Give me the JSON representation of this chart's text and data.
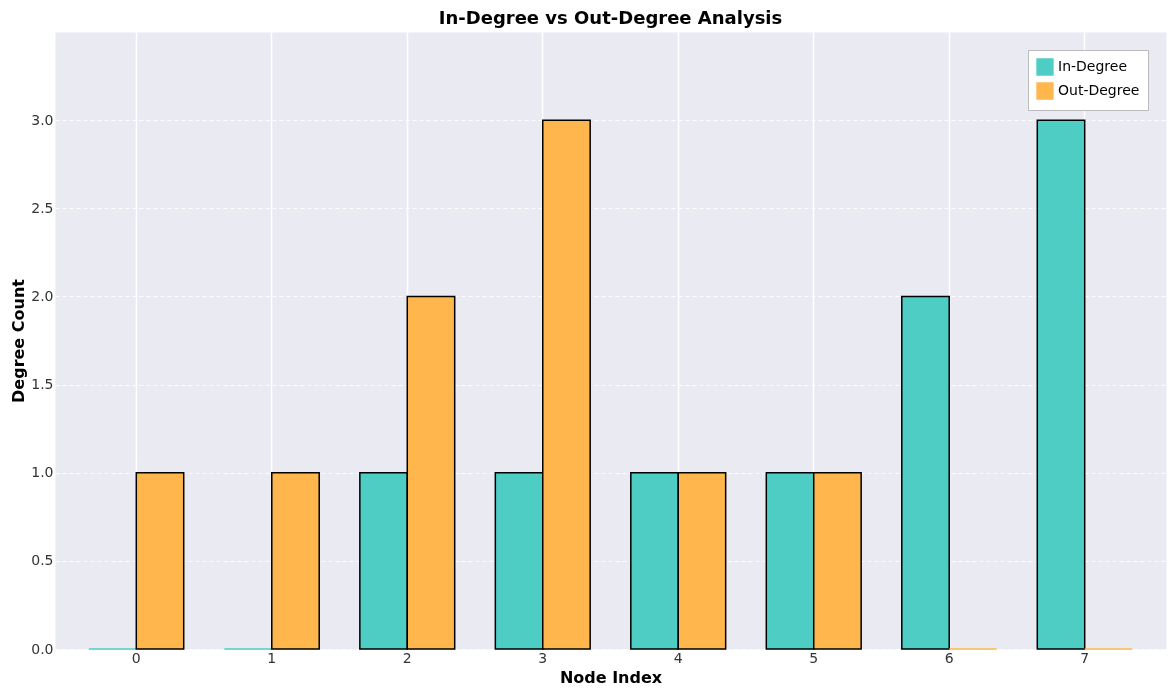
{
  "chart_data": {
    "type": "bar",
    "title": "In-Degree vs Out-Degree Analysis",
    "xlabel": "Node Index",
    "ylabel": "Degree Count",
    "categories": [
      "0",
      "1",
      "2",
      "3",
      "4",
      "5",
      "6",
      "7"
    ],
    "series": [
      {
        "name": "In-Degree",
        "color": "#4ecdc4",
        "values": [
          0,
          0,
          1,
          1,
          1,
          1,
          2,
          3
        ]
      },
      {
        "name": "Out-Degree",
        "color": "#ffb74d",
        "values": [
          1,
          1,
          2,
          3,
          1,
          1,
          0,
          0
        ]
      }
    ],
    "ylim": [
      0,
      3.5
    ],
    "yticks": [
      {
        "value": 0,
        "label": "0.0"
      },
      {
        "value": 0.5,
        "label": "0.5"
      },
      {
        "value": 1,
        "label": "1.0"
      },
      {
        "value": 1.5,
        "label": "1.5"
      },
      {
        "value": 2,
        "label": "2.0"
      },
      {
        "value": 2.5,
        "label": "2.5"
      },
      {
        "value": 3,
        "label": "3.0"
      }
    ],
    "grid": true,
    "legend": "top right"
  }
}
